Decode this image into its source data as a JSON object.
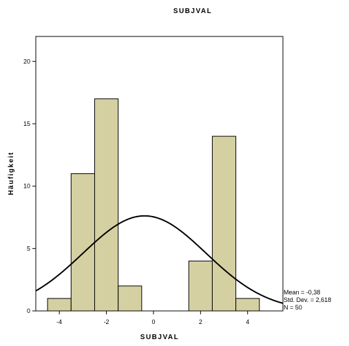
{
  "chart_data": {
    "type": "bar",
    "title": "SUBJVAL",
    "xlabel": "SUBJVAL",
    "ylabel": "Häufigkeit",
    "xlim": [
      -5,
      5.5
    ],
    "ylim": [
      0,
      22
    ],
    "xticks": [
      -4,
      -2,
      0,
      2,
      4
    ],
    "yticks": [
      0,
      5,
      10,
      15,
      20
    ],
    "bin_width": 1,
    "bins": [
      {
        "center": -4,
        "count": 1
      },
      {
        "center": -3,
        "count": 11
      },
      {
        "center": -2,
        "count": 17
      },
      {
        "center": -1,
        "count": 2
      },
      {
        "center": 0,
        "count": 0
      },
      {
        "center": 1,
        "count": 0
      },
      {
        "center": 2,
        "count": 4
      },
      {
        "center": 3,
        "count": 14
      },
      {
        "center": 4,
        "count": 1
      }
    ],
    "normal_curve": {
      "mean": -0.38,
      "sd": 2.618,
      "n": 50
    },
    "stats": {
      "mean": "Mean = -0,38",
      "sd": "Std. Dev. = 2,618",
      "n": "N = 50"
    },
    "bar_color": "#d4d0a1",
    "grid": false,
    "legend": "none"
  }
}
